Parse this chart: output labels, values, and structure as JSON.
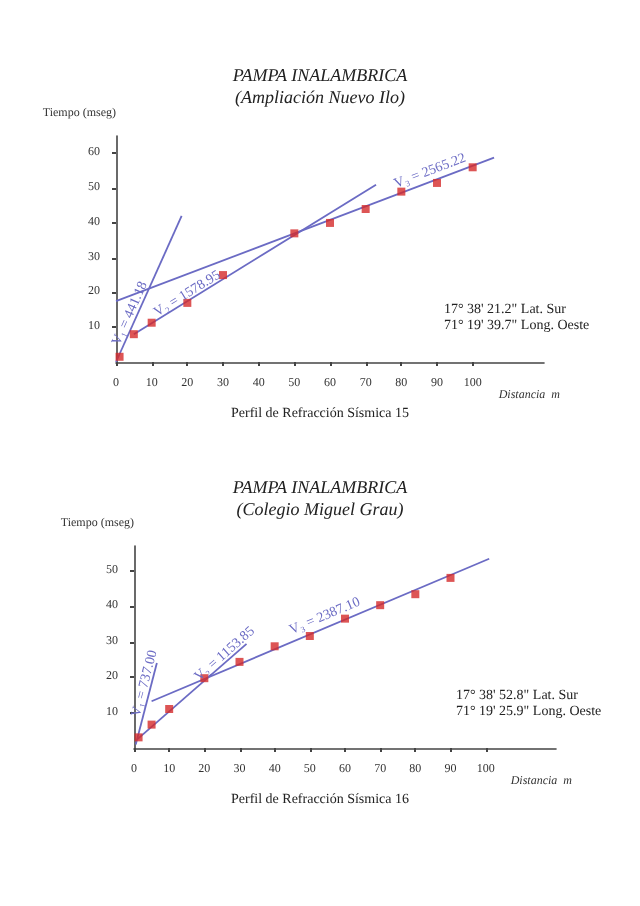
{
  "chart_data": [
    {
      "type": "scatter",
      "title": "PAMPA INALAMBRICA",
      "subtitle": "(Ampliación Nuevo Ilo)",
      "xlabel": "Distancia  m",
      "ylabel": "Tiempo (mseg)",
      "xlim": [
        0,
        120
      ],
      "ylim": [
        0,
        65
      ],
      "xticks": [
        0,
        10,
        20,
        30,
        40,
        50,
        60,
        70,
        80,
        90,
        100
      ],
      "yticks": [
        10,
        20,
        30,
        40,
        50,
        60
      ],
      "marker": "square",
      "grid": false,
      "series": [
        {
          "type": "line",
          "marker": "none",
          "color": "#6b6bc4",
          "x": [
            0,
            18.4
          ],
          "values": [
            0,
            42
          ]
        },
        {
          "type": "line",
          "marker": "none",
          "color": "#6b6bc4",
          "x": [
            5,
            72.9
          ],
          "values": [
            8,
            51
          ]
        },
        {
          "type": "line",
          "marker": "none",
          "color": "#6b6bc4",
          "x": [
            0,
            106
          ],
          "values": [
            17.5,
            58.8
          ]
        },
        {
          "color": "#d42a2a",
          "x": [
            1,
            5,
            10,
            20,
            30,
            50,
            60,
            70,
            80,
            90,
            100
          ],
          "values": [
            1.5,
            8,
            11.3,
            17,
            25,
            37,
            40,
            44,
            49,
            51.5,
            56
          ]
        }
      ],
      "annotations": [
        {
          "text": "V₁ = 441.18",
          "x": 3.8,
          "y": 14
        },
        {
          "text": "V₂ = 1578.95",
          "x": 19.9,
          "y": 19.7
        },
        {
          "text": "V₃ = 2565.22",
          "x": 88,
          "y": 55
        },
        "17° 38' 21.2\" Lat. Sur",
        "71° 19' 39.7\" Long. Oeste",
        "Perfil de Refracción Sísmica 15"
      ]
    },
    {
      "type": "scatter",
      "title": "PAMPA INALAMBRICA",
      "subtitle": "(Colegio Miguel Grau)",
      "xlabel": "Distancia  m",
      "ylabel": "Tiempo (mseg)",
      "xlim": [
        0,
        120
      ],
      "ylim": [
        0,
        57
      ],
      "xticks": [
        0,
        10,
        20,
        30,
        40,
        50,
        60,
        70,
        80,
        90,
        100
      ],
      "yticks": [
        10,
        20,
        30,
        40,
        50
      ],
      "marker": "square",
      "grid": false,
      "series": [
        {
          "type": "line",
          "marker": "none",
          "color": "#6b6bc4",
          "x": [
            0.5,
            6.5
          ],
          "values": [
            1,
            24
          ]
        },
        {
          "type": "line",
          "marker": "none",
          "color": "#6b6bc4",
          "x": [
            1,
            32
          ],
          "values": [
            2.5,
            29.4
          ]
        },
        {
          "type": "line",
          "marker": "none",
          "color": "#6b6bc4",
          "x": [
            5,
            101
          ],
          "values": [
            13.2,
            53.4
          ]
        },
        {
          "color": "#d42a2a",
          "x": [
            1.3,
            5,
            10,
            20,
            30,
            40,
            50,
            60,
            70,
            80,
            90
          ],
          "values": [
            3,
            6.6,
            11,
            19.7,
            24.3,
            28.7,
            31.6,
            36.5,
            40.3,
            43.4,
            48
          ]
        }
      ],
      "annotations": [
        {
          "text": "V₁ = 737.00",
          "x": 2.9,
          "y": 18.2
        },
        {
          "text": "V₂ = 1153.85",
          "x": 25.7,
          "y": 26.6
        },
        {
          "text": "V₃ = 2387.10",
          "x": 54.2,
          "y": 37.3
        },
        "17° 38' 52.8\" Lat. Sur",
        "71° 19' 25.9\" Long. Oeste",
        "Perfil de Refracción Sísmica 16"
      ]
    }
  ]
}
